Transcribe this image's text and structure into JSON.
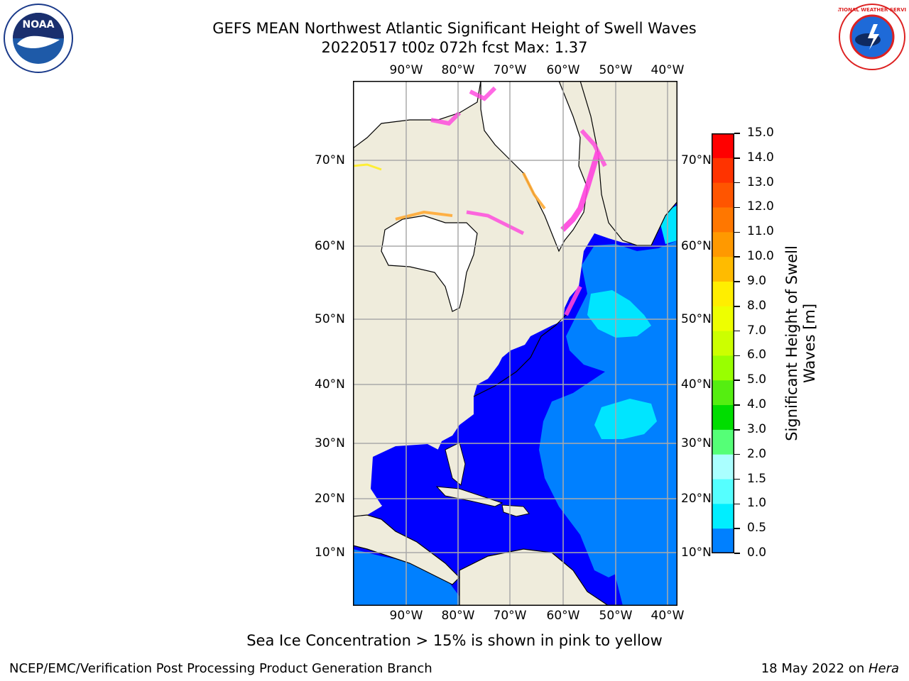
{
  "title": {
    "line1": "GEFS MEAN Northwest Atlantic Significant Height of Swell Waves",
    "line2": "20220517 t00z 072h fcst   Max: 1.37"
  },
  "logos": {
    "left": "NOAA",
    "right": "NATIONAL WEATHER SERVICE"
  },
  "map": {
    "lon_labels": [
      "90°W",
      "80°W",
      "70°W",
      "60°W",
      "50°W",
      "40°W"
    ],
    "lat_labels_left": [
      "70°N",
      "60°N",
      "50°N",
      "40°N",
      "30°N",
      "20°N",
      "10°N"
    ],
    "lat_labels_right": [
      "70°N",
      "60°N",
      "50°N",
      "40°N",
      "30°N",
      "20°N",
      "10°N"
    ],
    "colors": {
      "land": "#efecdc",
      "ice_white": "#ffffff",
      "ice_pink": "#ff44dd",
      "ice_orange": "#ffaa33",
      "ice_yellow": "#ffee22",
      "swell_0_0_5": "#0000ff",
      "swell_0_5_1_0": "#0080ff",
      "swell_1_0_1_5": "#00e5ff"
    }
  },
  "colorbar": {
    "label_line1": "Significant Height of Swell",
    "label_line2": "Waves [m]",
    "ticks": [
      "15.0",
      "14.0",
      "13.0",
      "12.0",
      "11.0",
      "10.0",
      "9.0",
      "8.0",
      "7.0",
      "6.0",
      "5.0",
      "4.0",
      "3.0",
      "2.0",
      "1.5",
      "1.0",
      "0.5",
      "0.0"
    ],
    "colors": [
      "#ff0000",
      "#ff3300",
      "#ff5500",
      "#ff7700",
      "#ff9900",
      "#ffbb00",
      "#ffee00",
      "#eeff00",
      "#ccff00",
      "#99ff00",
      "#55ee11",
      "#00dd00",
      "#55ff77",
      "#aaffff",
      "#55ffff",
      "#00eeff",
      "#0080ff",
      "#0000ff"
    ]
  },
  "caption": "Sea Ice Concentration > 15% is shown in pink to yellow",
  "footer": {
    "left": "NCEP/EMC/Verification Post Processing Product Generation Branch",
    "right_date": "18 May 2022 on ",
    "right_host": "Hera"
  }
}
